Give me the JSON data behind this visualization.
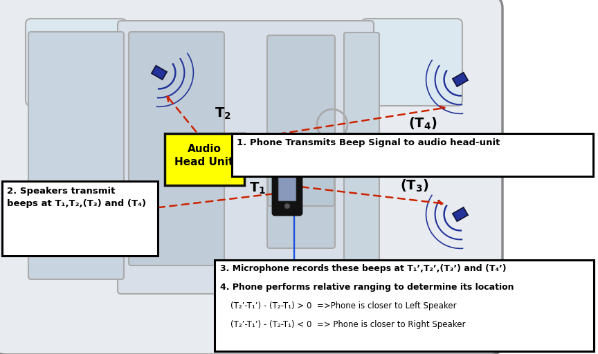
{
  "fig_w": 8.64,
  "fig_h": 5.12,
  "dpi": 100,
  "bg_color": "white",
  "car_body_color": "#e8ecf0",
  "car_line_color": "#aaaaaa",
  "car_line_lw": 1.5,
  "head_unit_color": "#ffff00",
  "head_unit_label": "Audio\nHead Unit",
  "arrow_red": "#cc2200",
  "arrow_blue": "#2255dd",
  "speaker_color": "#223399",
  "phone_color": "#111111",
  "phone_screen_color": "#8899bb",
  "text_box1": "2. Speakers transmit\nbeeps at T₁,T₂,(T₃) and (T₄)",
  "text_box2": "1. Phone Transmits Beep Signal to audio head-unit",
  "text_box3_l1": "3. Microphone records these beeps at T₁’,T₂’,(T₃’) and (T₄’)",
  "text_box3_l2": "4. Phone performs relative ranging to determine its location",
  "text_box3_l3": "    (T₂’-T₁’) - (T₂-T₁) > 0  =>Phone is closer to Left Speaker",
  "text_box3_l4": "    (T₂’-T₁’) - (T₂-T₁) < 0  => Phone is closer to Right Speaker",
  "lbl_T2": "T₂",
  "lbl_T4": "(T₄)",
  "lbl_T1": "T₁",
  "lbl_T3": "(T₃)"
}
